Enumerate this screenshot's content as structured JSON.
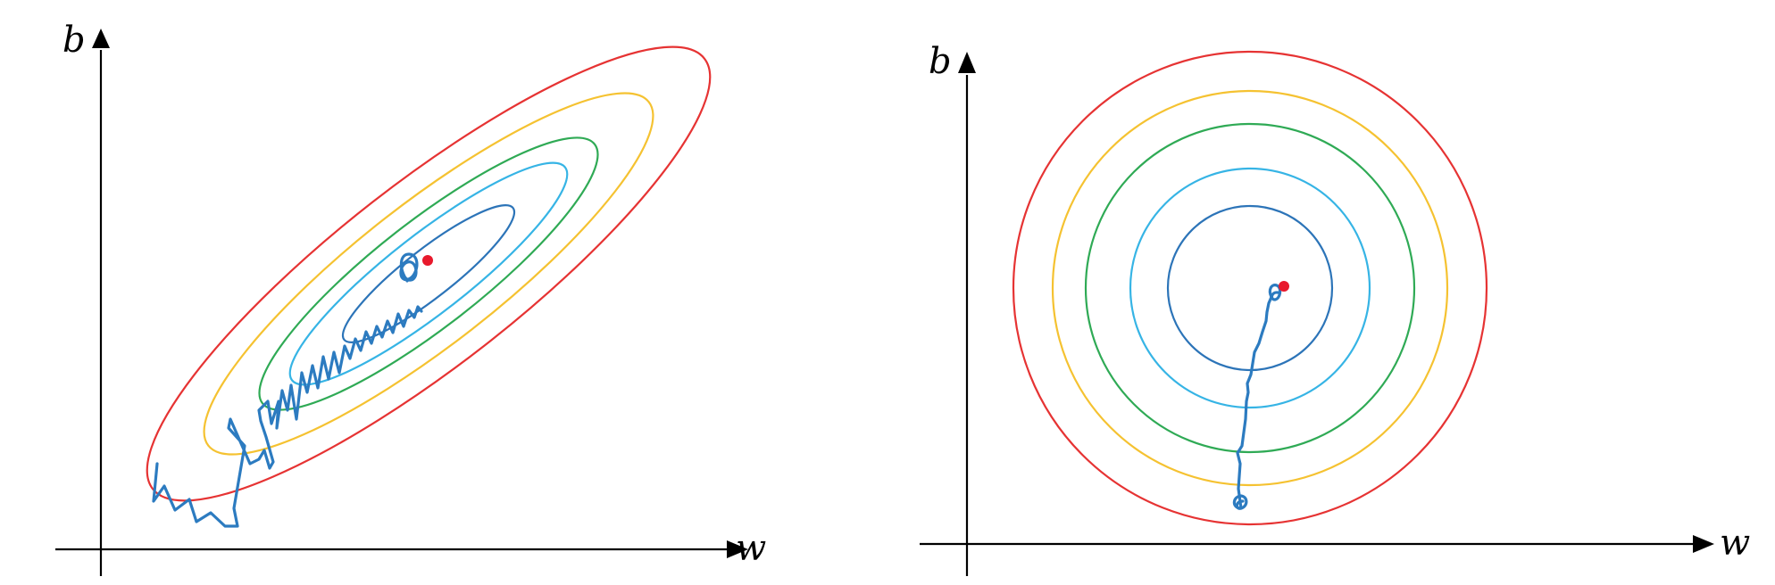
{
  "panels": [
    {
      "axes": {
        "x_label": "w",
        "y_label": "b"
      }
    },
    {
      "axes": {
        "x_label": "w",
        "y_label": "b"
      }
    }
  ],
  "colors": {
    "contours": [
      "#e63333",
      "#f5c231",
      "#2faa55",
      "#36b4e5",
      "#2c74b8"
    ],
    "path": "#2c7bc0",
    "minimum": "#e8192c",
    "axes": "#000000"
  }
}
